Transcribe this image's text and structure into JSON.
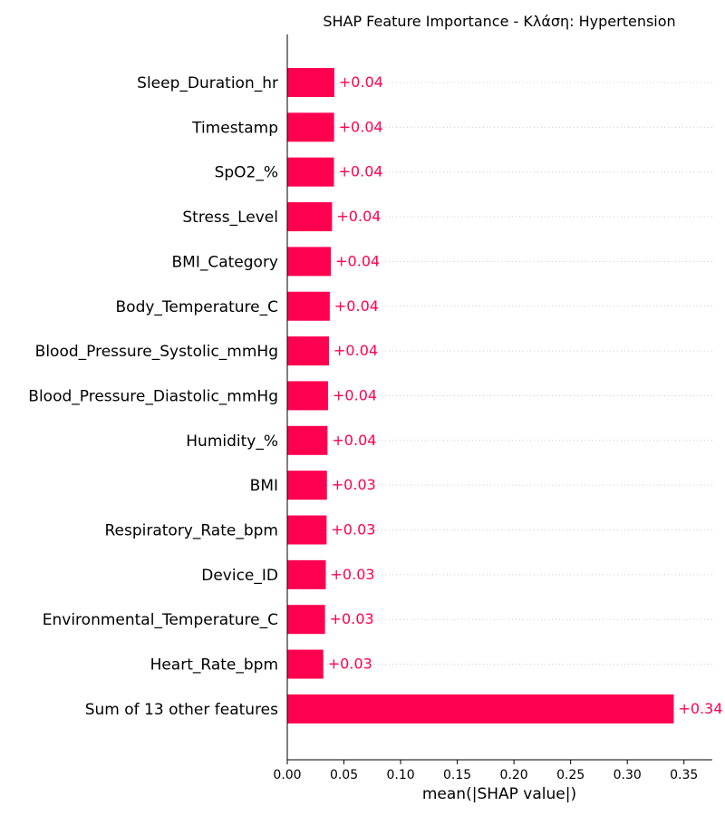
{
  "chart_data": {
    "type": "bar",
    "orientation": "horizontal",
    "title": "SHAP Feature Importance - Κλάση: Hypertension",
    "xlabel": "mean(|SHAP value|)",
    "ylabel": "",
    "xlim": [
      0,
      0.375
    ],
    "xticks": [
      0.0,
      0.05,
      0.1,
      0.15,
      0.2,
      0.25,
      0.3,
      0.35
    ],
    "xtick_labels": [
      "0.00",
      "0.05",
      "0.10",
      "0.15",
      "0.20",
      "0.25",
      "0.30",
      "0.35"
    ],
    "bar_color": "#ff0051",
    "label_color": "#ff0051",
    "grid": "dotted horizontal guide lines",
    "categories": [
      "Sleep_Duration_hr",
      "Timestamp",
      "SpO2_%",
      "Stress_Level",
      "BMI_Category",
      "Body_Temperature_C",
      "Blood_Pressure_Systolic_mmHg",
      "Blood_Pressure_Diastolic_mmHg",
      "Humidity_%",
      "BMI",
      "Respiratory_Rate_bpm",
      "Device_ID",
      "Environmental_Temperature_C",
      "Heart_Rate_bpm",
      "Sum of 13 other features"
    ],
    "values": [
      0.0415,
      0.0413,
      0.0412,
      0.0395,
      0.0385,
      0.0375,
      0.0368,
      0.036,
      0.0355,
      0.035,
      0.0347,
      0.034,
      0.0333,
      0.0318,
      0.341
    ],
    "value_labels": [
      "+0.04",
      "+0.04",
      "+0.04",
      "+0.04",
      "+0.04",
      "+0.04",
      "+0.04",
      "+0.04",
      "+0.04",
      "+0.03",
      "+0.03",
      "+0.03",
      "+0.03",
      "+0.03",
      "+0.34"
    ]
  }
}
